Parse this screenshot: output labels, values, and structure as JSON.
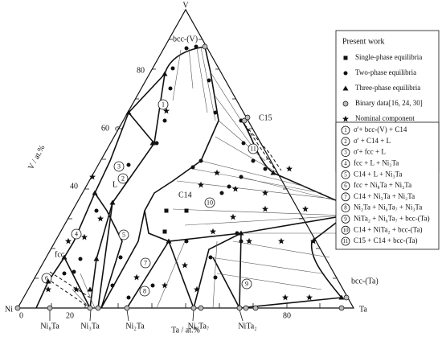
{
  "vertices": {
    "top": "V",
    "left": "Ni",
    "right": "Ta"
  },
  "axis_labels": {
    "left": "V / at.%",
    "bottom": "Ta / at.%"
  },
  "left_ticks": [
    "40",
    "60",
    "80"
  ],
  "bottom_ticks": [
    "0",
    "20",
    "80"
  ],
  "phases": {
    "bcc_v": "bcc-(V)",
    "c15": "C15",
    "bcc_ta": "bcc-(Ta)",
    "fcc": "fcc",
    "c14": "C14",
    "liquid": "L",
    "sigma": "σ'"
  },
  "compounds": [
    "Ni₈Ta",
    "Ni₃Ta",
    "Ni₂Ta",
    "Ni₆Ta₇",
    "NiTa₂"
  ],
  "legend_symbols": {
    "title": "Present work",
    "items": [
      "Single-phase equilibria",
      "Two-phase equilibria",
      "Three-phase equilibria",
      "Binary data[16, 24, 30]",
      "Nominal component"
    ]
  },
  "legend_regions": [
    {
      "number": "1",
      "text": "σ'+ bcc-(V) + C14"
    },
    {
      "number": "2",
      "text": "σ' + C14 + L"
    },
    {
      "number": "3",
      "text": "σ'+ fcc + L"
    },
    {
      "number": "4",
      "text": "fcc + L + Ni₃Ta"
    },
    {
      "number": "5",
      "text": "C14 + L + Ni₃Ta"
    },
    {
      "number": "6",
      "text": "fcc + Ni₈Ta + Ni₃Ta"
    },
    {
      "number": "7",
      "text": "C14 + Ni₃Ta + Ni₂Ta"
    },
    {
      "number": "8",
      "text": "Ni₂Ta + Ni₆Ta₇ + Ni₃Ta"
    },
    {
      "number": "9",
      "text": "NiTa₂ + Ni₆Ta₇ + bcc-(Ta)"
    },
    {
      "number": "10",
      "text": "C14 + NiTa₂ + bcc-(Ta)"
    },
    {
      "number": "11",
      "text": "C15 + C14 + bcc-(Ta)"
    }
  ]
}
